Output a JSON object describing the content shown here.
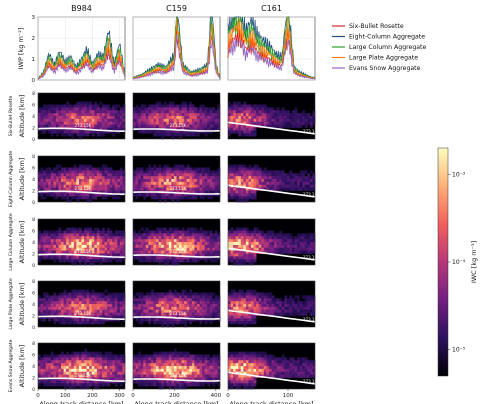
{
  "chart_data": {
    "type": "multi-panel",
    "columns": [
      {
        "title": "B984",
        "x_ticks": [
          0,
          100,
          200,
          300
        ],
        "x_max": 320,
        "isotherm": "273.15K"
      },
      {
        "title": "C159",
        "x_ticks": [
          0,
          200,
          400
        ],
        "x_max": 420,
        "isotherm": "273.15K"
      },
      {
        "title": "C161",
        "x_ticks": [
          0,
          100
        ],
        "x_max": 145,
        "isotherm": "273.15K"
      }
    ],
    "iwp": {
      "ylabel": "IWP [kg m⁻²]",
      "ylim": [
        0,
        3
      ],
      "y_ticks": [
        0,
        1,
        2,
        3
      ],
      "series": [
        {
          "name": "Six-Bullet Rosette",
          "color": "#d62728",
          "scale": 0.7
        },
        {
          "name": "Eight-Column Aggregate",
          "color": "#1f4e79",
          "scale": 1.15
        },
        {
          "name": "Large Column Aggregate",
          "color": "#2ca02c",
          "scale": 1.0
        },
        {
          "name": "Large Plate Aggregate",
          "color": "#ff7f0e",
          "scale": 0.85
        },
        {
          "name": "Evans Snow Aggregate",
          "color": "#9467bd",
          "scale": 0.6
        }
      ],
      "columns": [
        {
          "x": [
            0,
            20,
            40,
            60,
            80,
            100,
            120,
            140,
            160,
            180,
            200,
            220,
            240,
            260,
            280,
            300,
            320
          ],
          "y": [
            0.05,
            0.3,
            1.0,
            0.6,
            1.1,
            0.7,
            0.9,
            0.5,
            0.8,
            1.2,
            0.6,
            1.0,
            0.9,
            1.9,
            0.6,
            1.4,
            0.2
          ]
        },
        {
          "x": [
            0,
            40,
            80,
            120,
            160,
            200,
            210,
            240,
            280,
            320,
            360,
            380,
            400,
            420
          ],
          "y": [
            0.1,
            0.2,
            0.4,
            0.6,
            0.5,
            1.0,
            3.0,
            0.6,
            0.3,
            0.4,
            0.6,
            3.0,
            0.6,
            0.1
          ]
        },
        {
          "x": [
            0,
            10,
            20,
            30,
            40,
            50,
            60,
            70,
            80,
            90,
            100,
            110,
            120,
            130,
            140
          ],
          "y": [
            2.0,
            2.6,
            2.8,
            1.9,
            2.3,
            1.7,
            1.5,
            1.3,
            1.0,
            0.9,
            3.0,
            0.5,
            0.3,
            0.2,
            0.1
          ]
        }
      ]
    },
    "iwc": {
      "ylabel": "Altitude [km]",
      "ylim": [
        0,
        8
      ],
      "y_ticks": [
        0,
        2,
        4,
        6,
        8
      ],
      "xlabel": "Along-track distance [km]",
      "rows": [
        "Six-Bullet Rosette",
        "Eight-Column Aggregate",
        "Large Column Aggregate",
        "Large Plate Aggregate",
        "Evans Snow Aggregate"
      ],
      "row_intensity": [
        0.8,
        0.9,
        1.05,
        0.85,
        1.1
      ]
    },
    "colorbar": {
      "label": "IWC [kg m⁻³]",
      "scale": "log",
      "range": [
        5e-06,
        0.002
      ],
      "ticks": [
        {
          "label": "10⁻⁵",
          "value": 1e-05
        },
        {
          "label": "10⁻⁴",
          "value": 0.0001
        },
        {
          "label": "10⁻³",
          "value": 0.001
        }
      ],
      "colors": [
        "#000004",
        "#2c115f",
        "#721f81",
        "#b73779",
        "#f1605d",
        "#feb078",
        "#fcfdbf"
      ]
    }
  }
}
